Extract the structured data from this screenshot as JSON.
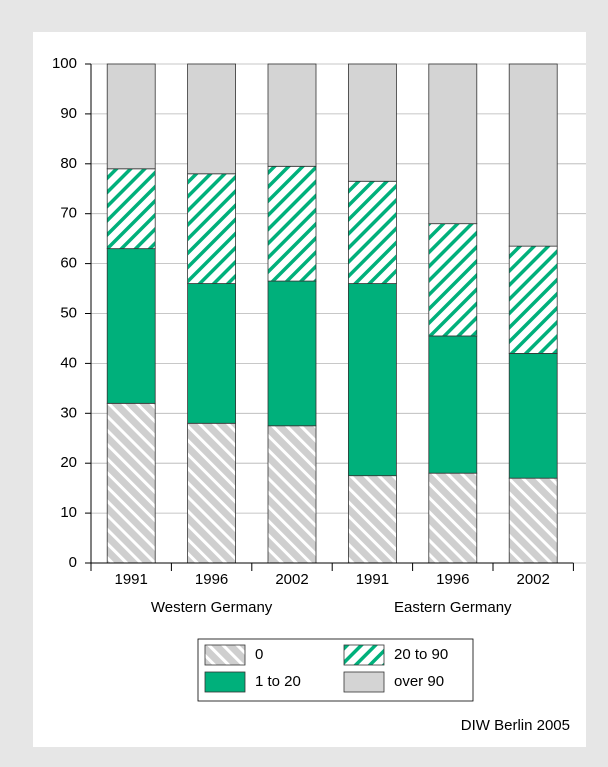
{
  "chart_data": {
    "type": "stacked_bar",
    "groups": [
      {
        "name": "Western Germany",
        "categories": [
          "1991",
          "1996",
          "2002"
        ]
      },
      {
        "name": "Eastern Germany",
        "categories": [
          "1991",
          "1996",
          "2002"
        ]
      }
    ],
    "series": [
      {
        "name": "0",
        "color": "#cfcfcf",
        "pattern": "backslash",
        "values": [
          32,
          28,
          27.5,
          17.5,
          18,
          17
        ]
      },
      {
        "name": "1 to 20",
        "color": "#00b07b",
        "values": [
          31,
          28,
          29,
          38.5,
          27.5,
          25
        ]
      },
      {
        "name": "20 to 90",
        "color": "#00b07b",
        "pattern": "slash",
        "values": [
          16,
          22,
          23,
          20.5,
          22.5,
          21.5
        ]
      },
      {
        "name": "over 90",
        "color": "#d4d4d4",
        "values": [
          21,
          22,
          20.5,
          23.5,
          32,
          36.5
        ]
      }
    ],
    "ylim": [
      0,
      100
    ],
    "yticks": [
      0,
      10,
      20,
      30,
      40,
      50,
      60,
      70,
      80,
      90,
      100
    ],
    "grid": true,
    "source": "DIW Berlin 2005"
  }
}
